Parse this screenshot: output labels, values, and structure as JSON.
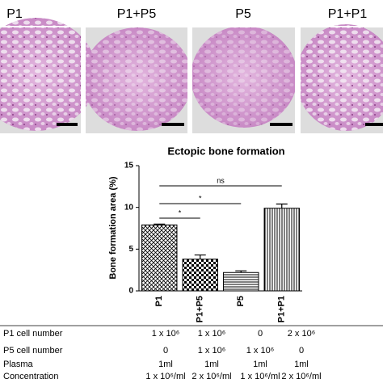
{
  "panels": [
    "P1",
    "P1+P5",
    "P5",
    "P1+P1"
  ],
  "chart_data": {
    "type": "bar",
    "title": "Ectopic bone formation",
    "y_label": "Bone formation area (%)",
    "categories": [
      "P1",
      "P1+P5",
      "P5",
      "P1+P1"
    ],
    "values": [
      7.9,
      3.8,
      2.2,
      9.9
    ],
    "errors": [
      0.1,
      0.5,
      0.2,
      0.5
    ],
    "ylim": [
      0,
      15
    ],
    "yticks": [
      0,
      5,
      10,
      15
    ],
    "significance_labels": [
      "ns",
      "*",
      "*"
    ]
  },
  "table": {
    "rows": [
      [
        "P1 cell number",
        "1 x 10⁶",
        "1 x 10⁶",
        "0",
        "2 x 10⁶"
      ],
      [
        "P5 cell number",
        "0",
        "1 x 10⁶",
        "1 x 10⁶",
        "0"
      ],
      [
        "Plasma",
        "1ml",
        "1ml",
        "1ml",
        "1ml"
      ],
      [
        "Concentration",
        "1 x 10⁶/ml",
        "2 x 10⁶/ml",
        "1 x 10⁶/ml",
        "2 x 10⁶/ml"
      ]
    ]
  }
}
